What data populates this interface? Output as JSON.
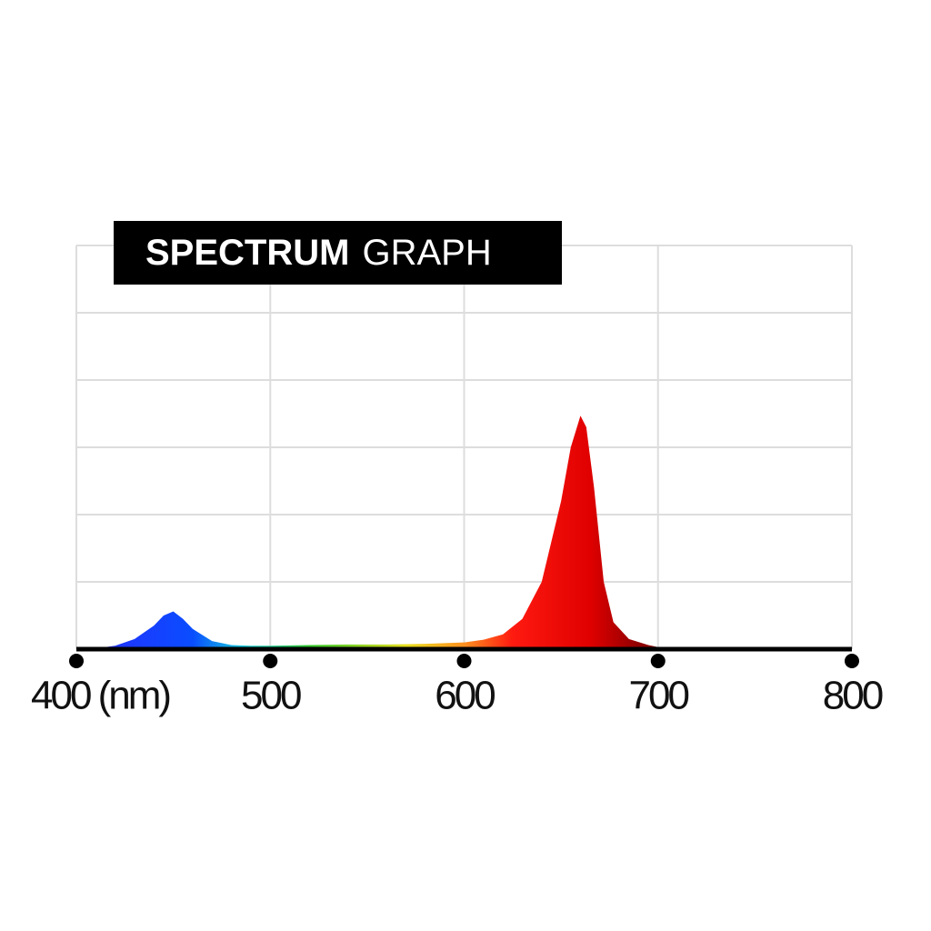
{
  "chart_data": {
    "type": "area",
    "title_parts": [
      "SPECTRUM",
      "GRAPH"
    ],
    "x": [
      400,
      410,
      420,
      430,
      440,
      445,
      450,
      455,
      460,
      470,
      480,
      490,
      500,
      520,
      540,
      560,
      580,
      600,
      610,
      620,
      630,
      640,
      650,
      655,
      660,
      663,
      667,
      672,
      677,
      685,
      695,
      700,
      720,
      750,
      800
    ],
    "values": [
      0,
      0.01,
      0.05,
      0.15,
      0.35,
      0.5,
      0.56,
      0.45,
      0.3,
      0.12,
      0.06,
      0.05,
      0.05,
      0.06,
      0.07,
      0.07,
      0.08,
      0.1,
      0.14,
      0.22,
      0.45,
      1.0,
      2.2,
      3.0,
      3.47,
      3.3,
      2.4,
      1.0,
      0.4,
      0.15,
      0.06,
      0.03,
      0.01,
      0,
      0
    ],
    "xlim": [
      400,
      800
    ],
    "xticks": [
      {
        "value": 400,
        "label": "400 (nm)"
      },
      500,
      600,
      700,
      800
    ],
    "ylim": [
      0,
      6
    ],
    "yticks": [
      0,
      1,
      2,
      3,
      4,
      5,
      6
    ],
    "grid": true
  }
}
